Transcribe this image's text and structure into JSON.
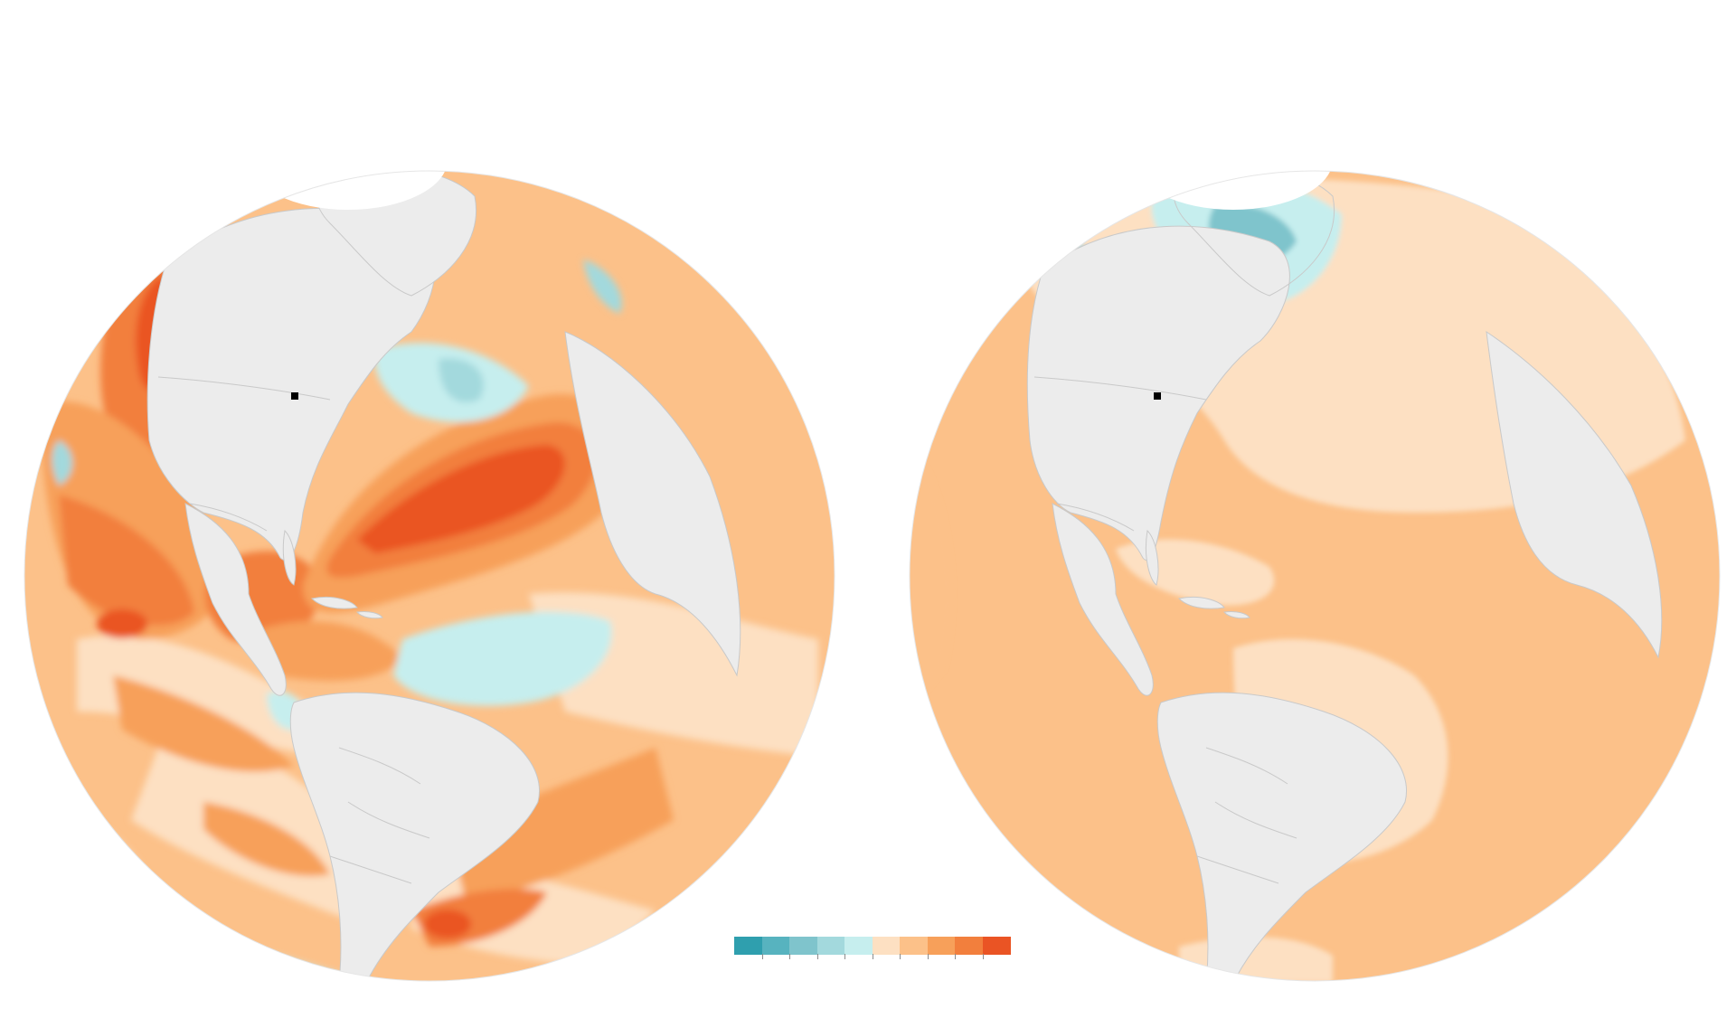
{
  "colors": {
    "background": "#ffffff",
    "land": "#ececec",
    "borders": "#c9c9c9",
    "ice": "#ffffff",
    "marker": "#000000",
    "scale": [
      "#2f9fae",
      "#57b3bf",
      "#7fc4cc",
      "#a3d9dd",
      "#c6eeee",
      "#fde0c2",
      "#fcc189",
      "#f7a05a",
      "#f27f3d",
      "#ea5424"
    ]
  },
  "globes": [
    {
      "name": "left-globe",
      "layer": "detailed-temperature-anomaly"
    },
    {
      "name": "right-globe",
      "layer": "smoothed-temperature-anomaly"
    }
  ],
  "legend": {
    "bins": 10,
    "tick_count": 9
  }
}
